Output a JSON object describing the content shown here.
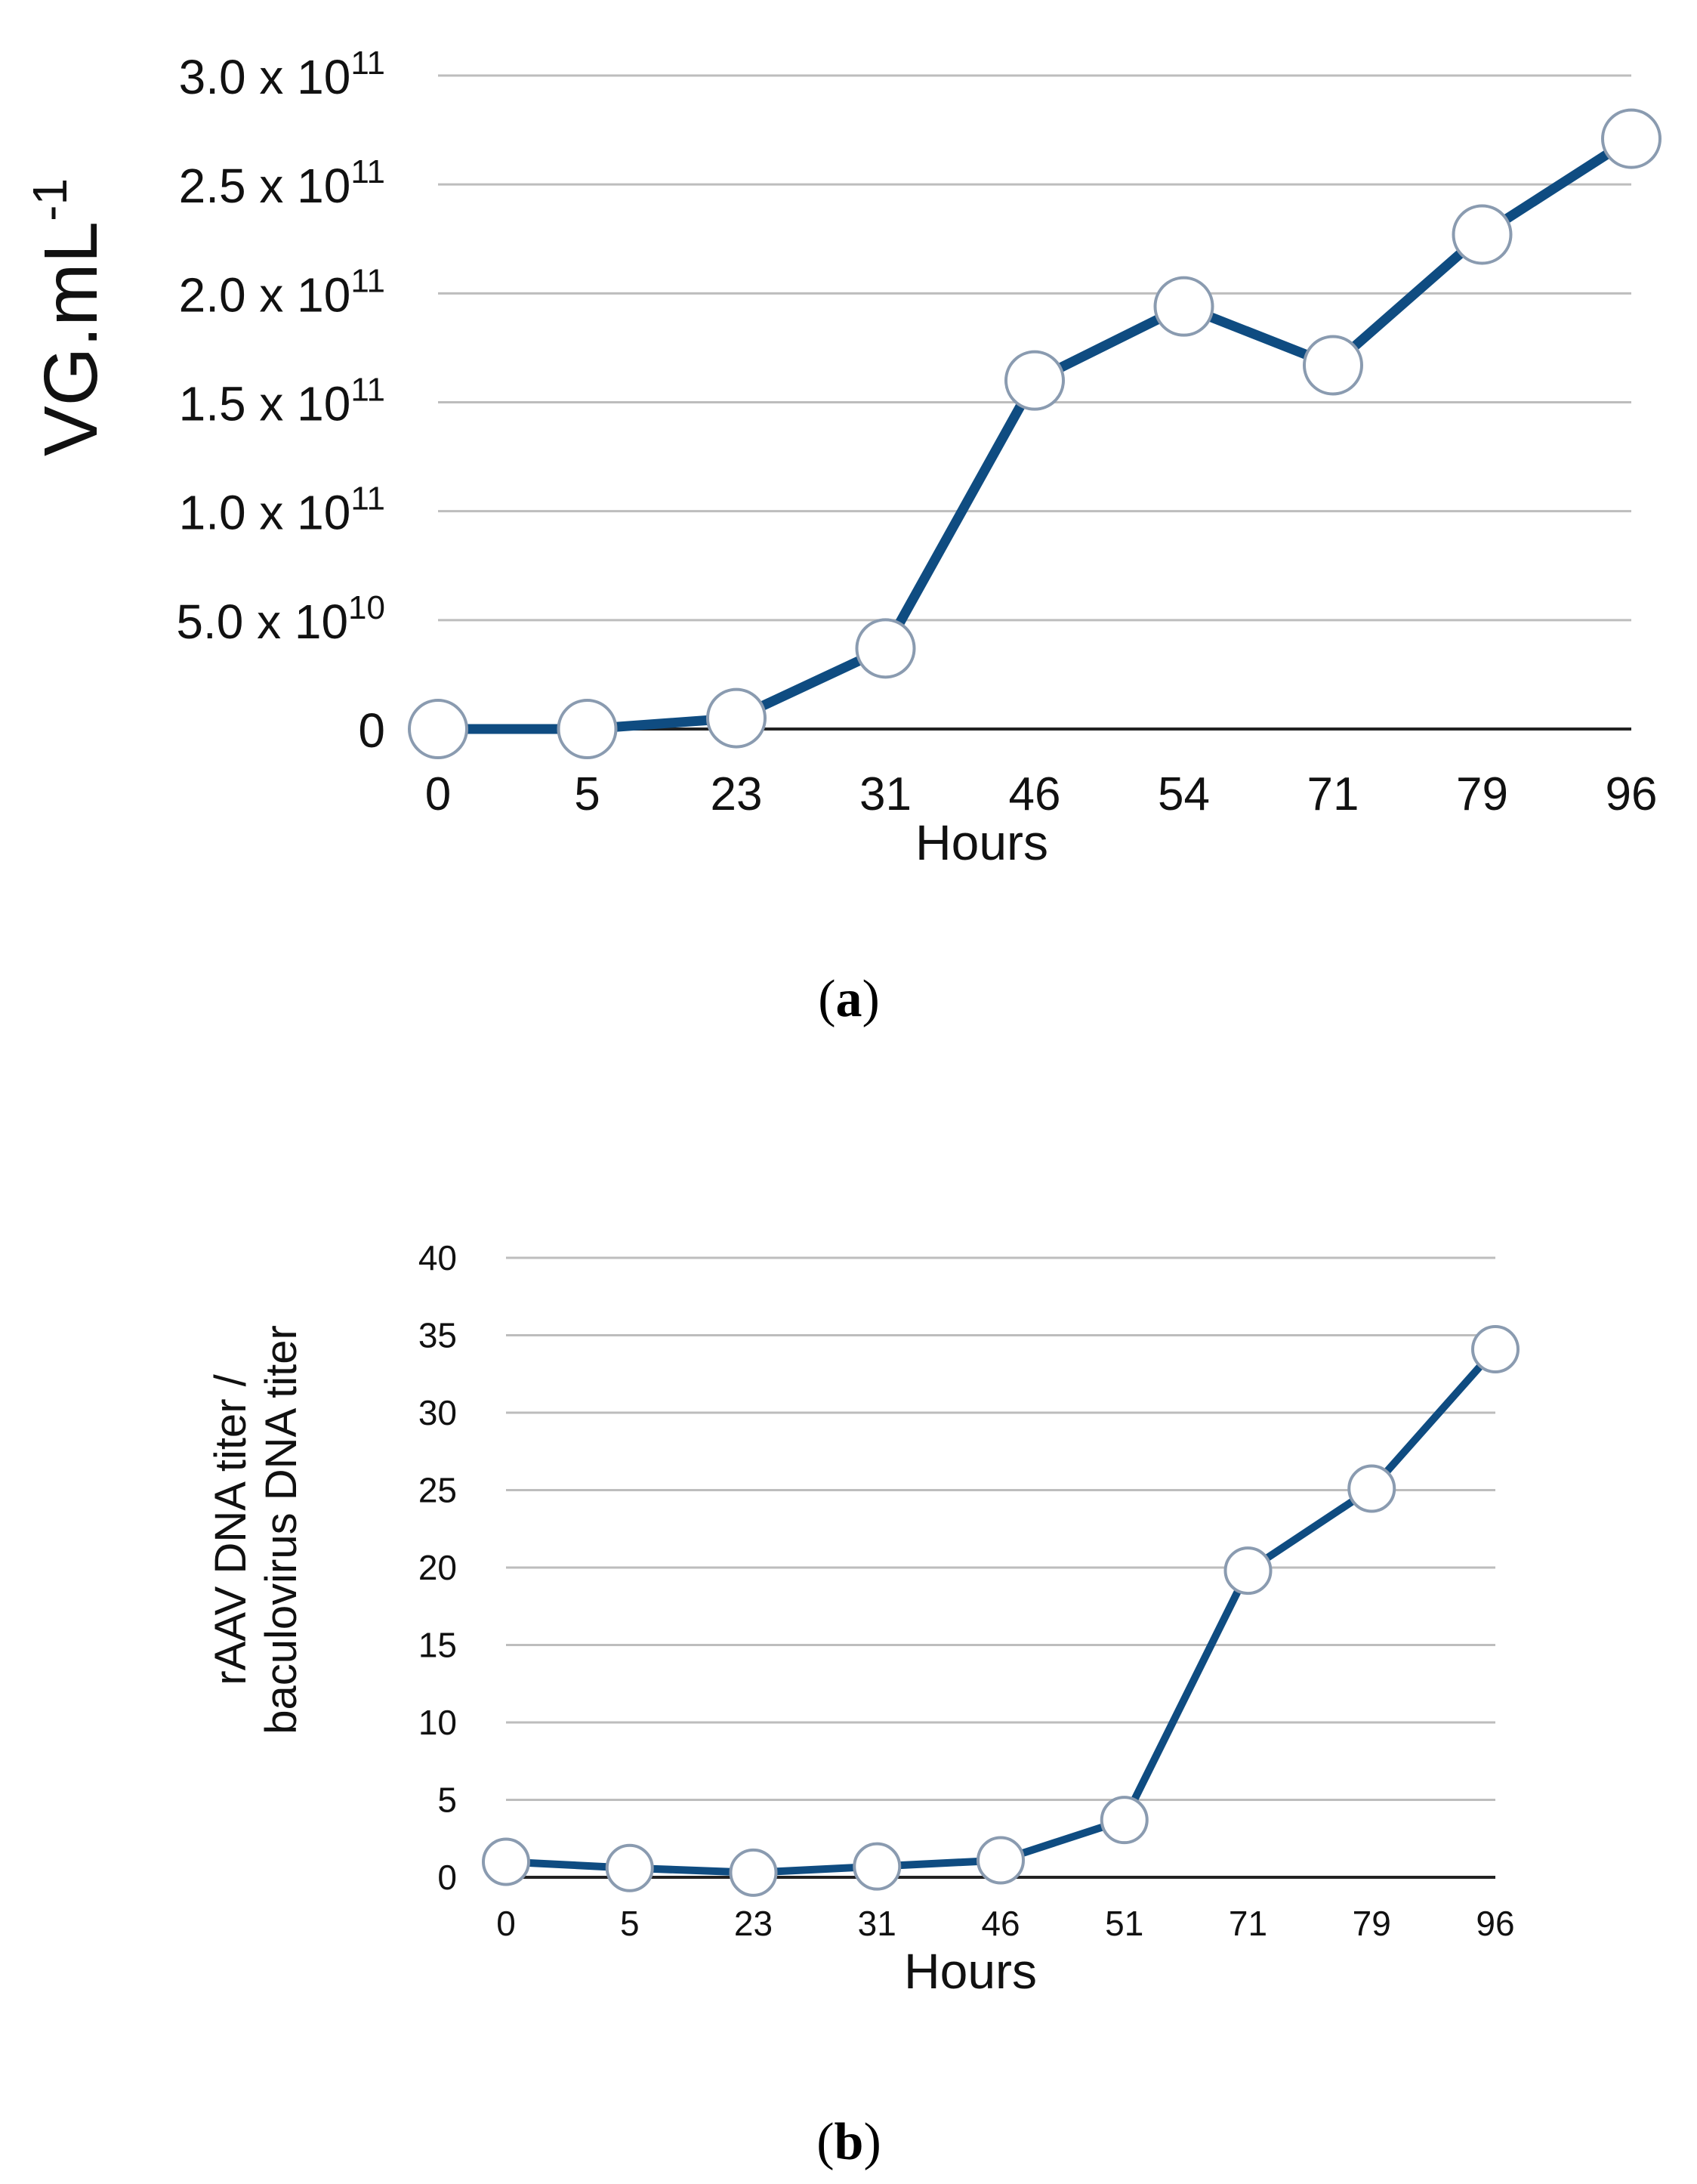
{
  "chart_data": [
    {
      "type": "line",
      "panel": "(a)",
      "panel_letter": "a",
      "title": "",
      "xlabel": "Hours",
      "ylabel": "VG.mL",
      "ylabel_sup": "-1",
      "categories": [
        "0",
        "5",
        "23",
        "31",
        "46",
        "54",
        "71",
        "79",
        "96"
      ],
      "values": [
        0,
        0,
        5000000000,
        37000000000,
        160000000000,
        194000000000,
        167000000000,
        227000000000,
        271000000000
      ],
      "ylim": [
        0,
        300000000000
      ],
      "yticks": [
        {
          "value": 0,
          "mantissa": "0",
          "exp": ""
        },
        {
          "value": 50000000000,
          "mantissa": "5.0 x 10",
          "exp": "10"
        },
        {
          "value": 100000000000,
          "mantissa": "1.0 x 10",
          "exp": "11"
        },
        {
          "value": 150000000000,
          "mantissa": "1.5 x 10",
          "exp": "11"
        },
        {
          "value": 200000000000,
          "mantissa": "2.0 x 10",
          "exp": "11"
        },
        {
          "value": 250000000000,
          "mantissa": "2.5 x 10",
          "exp": "11"
        },
        {
          "value": 300000000000,
          "mantissa": "3.0 x 10",
          "exp": "11"
        }
      ],
      "grid": true,
      "line_color": "#0f4c81",
      "marker_fill": "#ffffff",
      "marker_stroke": "#8a9bb0"
    },
    {
      "type": "line",
      "panel": "(b)",
      "panel_letter": "b",
      "title": "",
      "xlabel": "Hours",
      "ylabel_lines": [
        "rAAV DNA titer /",
        "baculovirus DNA titer"
      ],
      "categories": [
        "0",
        "5",
        "23",
        "31",
        "46",
        "51",
        "71",
        "79",
        "96"
      ],
      "values": [
        1.0,
        0.6,
        0.3,
        0.7,
        1.1,
        3.7,
        19.8,
        25.1,
        34.1
      ],
      "ylim": [
        0,
        40
      ],
      "yticks": [
        "0",
        "5",
        "10",
        "15",
        "20",
        "25",
        "30",
        "35",
        "40"
      ],
      "grid": true,
      "line_color": "#0f4c81",
      "marker_fill": "#ffffff",
      "marker_stroke": "#8a9bb0"
    }
  ]
}
